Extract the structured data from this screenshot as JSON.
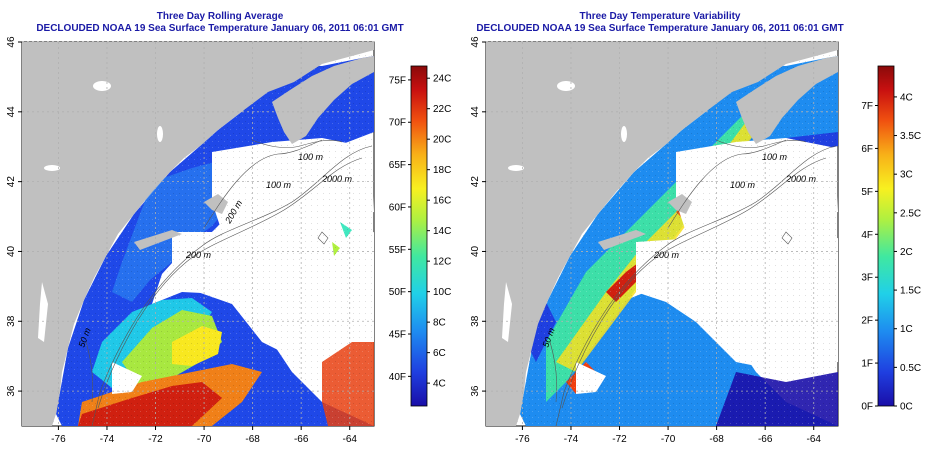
{
  "left_panel": {
    "title": "Three Day Rolling Average",
    "subtitle": "DECLOUDED NOAA 19 Sea Surface Temperature January 06, 2011 06:01 GMT"
  },
  "right_panel": {
    "title": "Three Day Temperature Variability",
    "subtitle": "DECLOUDED NOAA 19 Sea Surface Temperature January 06, 2011 06:01 GMT"
  },
  "map_axes": {
    "lon_ticks": [
      "-76",
      "-74",
      "-72",
      "-70",
      "-68",
      "-66",
      "-64"
    ],
    "lat_ticks": [
      "36",
      "38",
      "40",
      "42",
      "44",
      "46"
    ],
    "lon_range": [
      -77.5,
      -63
    ],
    "lat_range": [
      35,
      46
    ]
  },
  "contour_labels": {
    "left": [
      "100 m",
      "100 m",
      "2000 m",
      "200 m",
      "200 m",
      "50 m"
    ],
    "right": [
      "100 m",
      "100 m",
      "2000 m",
      "200 m",
      "50 m"
    ]
  },
  "left_colorbar": {
    "fahrenheit": [
      "40F",
      "45F",
      "50F",
      "55F",
      "60F",
      "65F",
      "70F",
      "75F"
    ],
    "celsius": [
      "4C",
      "6C",
      "8C",
      "10C",
      "12C",
      "14C",
      "16C",
      "18C",
      "20C",
      "22C",
      "24C"
    ],
    "c_range": [
      2.5,
      24.8
    ]
  },
  "right_colorbar": {
    "fahrenheit": [
      "0F",
      "1F",
      "2F",
      "3F",
      "4F",
      "5F",
      "6F",
      "7F"
    ],
    "celsius": [
      "0C",
      "0.5C",
      "1C",
      "1.5C",
      "2C",
      "2.5C",
      "3C",
      "3.5C",
      "4C"
    ],
    "c_range": [
      0,
      4.4
    ]
  },
  "colors": {
    "title": "#1a1aa6",
    "land": "#c0c0c0",
    "nodata": "#ffffff",
    "grid": "#b0b0b0",
    "colormap": [
      "#1a0ea8",
      "#1f3fe0",
      "#1e8cf0",
      "#20d0e8",
      "#40e8a0",
      "#b0f040",
      "#f8f020",
      "#f8b018",
      "#f05010",
      "#c81010",
      "#8a0a0a"
    ]
  }
}
